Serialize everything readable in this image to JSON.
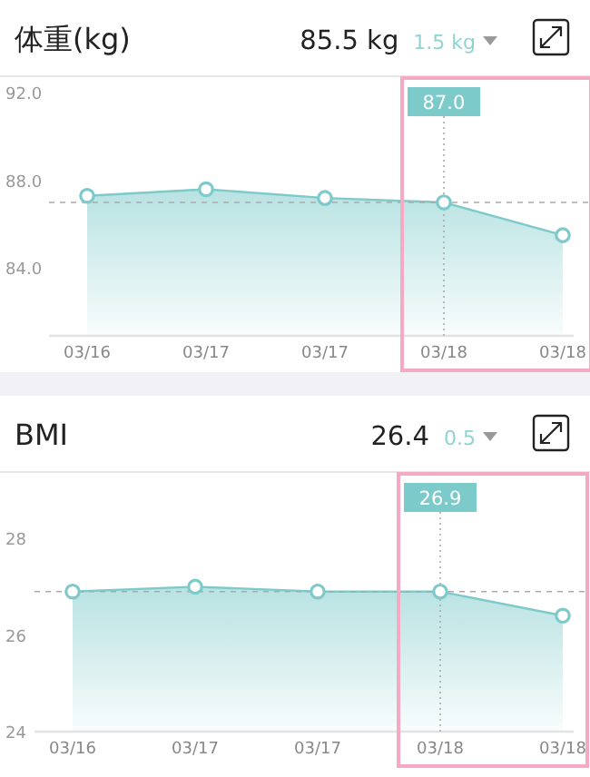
{
  "chart_data": [
    {
      "type": "area",
      "title": "体重(kg)",
      "categories": [
        "03/16",
        "03/17",
        "03/17",
        "03/18",
        "03/18"
      ],
      "values": [
        87.3,
        87.6,
        87.2,
        87.0,
        85.5
      ],
      "color": "#7ecaca",
      "ylim": [
        80.9,
        92.6
      ],
      "yticks": [
        {
          "value": 84,
          "label": "84.0"
        },
        {
          "value": 88,
          "label": "88.0"
        },
        {
          "value": 92,
          "label": "92.0"
        }
      ],
      "marker": "circle",
      "ref_lines": [
        {
          "axis": "y",
          "value": 87.0,
          "line_style": "dashed",
          "color": "#aaaaaa"
        },
        {
          "axis": "x",
          "value": "03/18",
          "label": "87.0",
          "line_style": "dotted",
          "color": "#aaaaaa"
        }
      ],
      "annotations": [
        "85.5 kg",
        "1.5 kg"
      ]
    },
    {
      "type": "area",
      "title": "BMI",
      "categories": [
        "03/16",
        "03/17",
        "03/17",
        "03/18",
        "03/18"
      ],
      "values": [
        26.9,
        27.0,
        26.9,
        26.9,
        26.4
      ],
      "color": "#7ecaca",
      "ylim": [
        24,
        29.3
      ],
      "yticks": [
        24,
        26,
        28
      ],
      "marker": "circle",
      "ref_lines": [
        {
          "axis": "y",
          "value": 26.9,
          "line_style": "dashed",
          "color": "#aaaaaa"
        },
        {
          "axis": "x",
          "value": "03/18",
          "label": "26.9",
          "line_style": "dotted",
          "color": "#aaaaaa"
        }
      ],
      "annotations": [
        "26.4",
        "0.5"
      ]
    }
  ]
}
